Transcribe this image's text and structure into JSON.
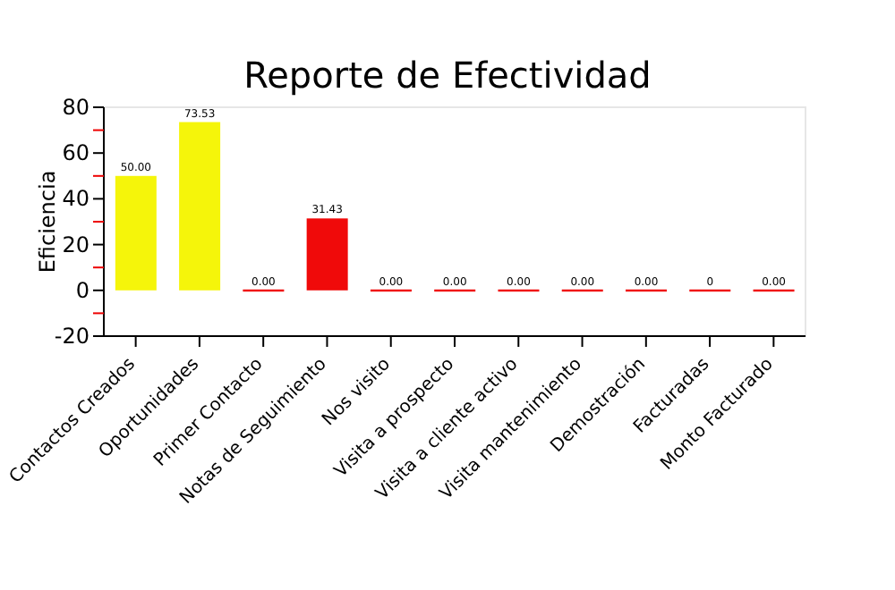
{
  "chart_data": {
    "type": "bar",
    "title": "Reporte de Efectividad",
    "ylabel": "Eficiencia",
    "categories": [
      "Contactos Creados",
      "Oportunidades",
      "Primer Contacto",
      "Notas de Seguimiento",
      "Nos visito",
      "Visita a prospecto",
      "Visita a cliente activo",
      "Visita mantenimiento",
      "Demostración",
      "Facturadas",
      "Monto Facturado"
    ],
    "values": [
      50,
      73.53,
      0,
      31.43,
      0,
      0,
      0,
      0,
      0,
      0,
      0
    ],
    "colors": [
      "#f5f50a",
      "#f5f50a",
      "#f00a0a",
      "#f00a0a",
      "#f00a0a",
      "#f00a0a",
      "#f00a0a",
      "#f00a0a",
      "#f00a0a",
      "#f00a0a",
      "#f00a0a"
    ],
    "value_labels": [
      "50.00",
      "73.53",
      "0.00",
      "31.43",
      "0.00",
      "0.00",
      "0.00",
      "0.00",
      "0.00",
      "0",
      "0.00"
    ],
    "ylim": [
      -20,
      80
    ],
    "yticks": [
      -20,
      {
        "value": -10,
        "label": null
      },
      0,
      {
        "value": 10,
        "label": null
      },
      20,
      {
        "value": 30,
        "label": null
      },
      40,
      {
        "value": 50,
        "label": null
      },
      60,
      {
        "value": 70,
        "label": null
      },
      80
    ],
    "grid": false,
    "legend": false
  }
}
